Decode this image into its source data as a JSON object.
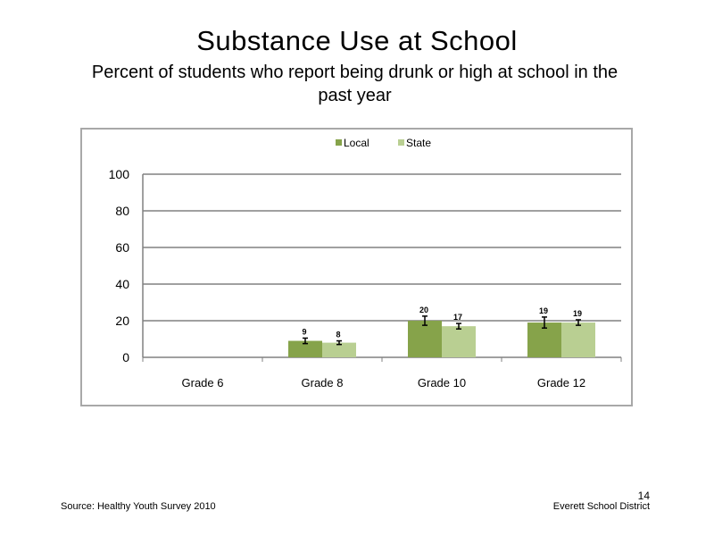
{
  "slide": {
    "title": "Substance Use at School",
    "subtitle": "Percent of students who report being drunk or high at school in the past year",
    "source": "Source: Healthy Youth Survey 2010",
    "organization": "Everett School District",
    "page_number": "14"
  },
  "chart_data": {
    "type": "bar",
    "categories": [
      "Grade 6",
      "Grade 8",
      "Grade 10",
      "Grade 12"
    ],
    "series": [
      {
        "name": "Local",
        "color": "#86a34a",
        "values": [
          null,
          9,
          20,
          19
        ],
        "error": [
          null,
          1.5,
          2.5,
          3
        ]
      },
      {
        "name": "State",
        "color": "#b9cf92",
        "values": [
          null,
          8,
          17,
          19
        ],
        "error": [
          null,
          1,
          1.5,
          1.5
        ]
      }
    ],
    "ylim": [
      0,
      100
    ],
    "yticks": [
      0,
      20,
      40,
      60,
      80,
      100
    ],
    "grid": true,
    "legend": "top-center"
  }
}
